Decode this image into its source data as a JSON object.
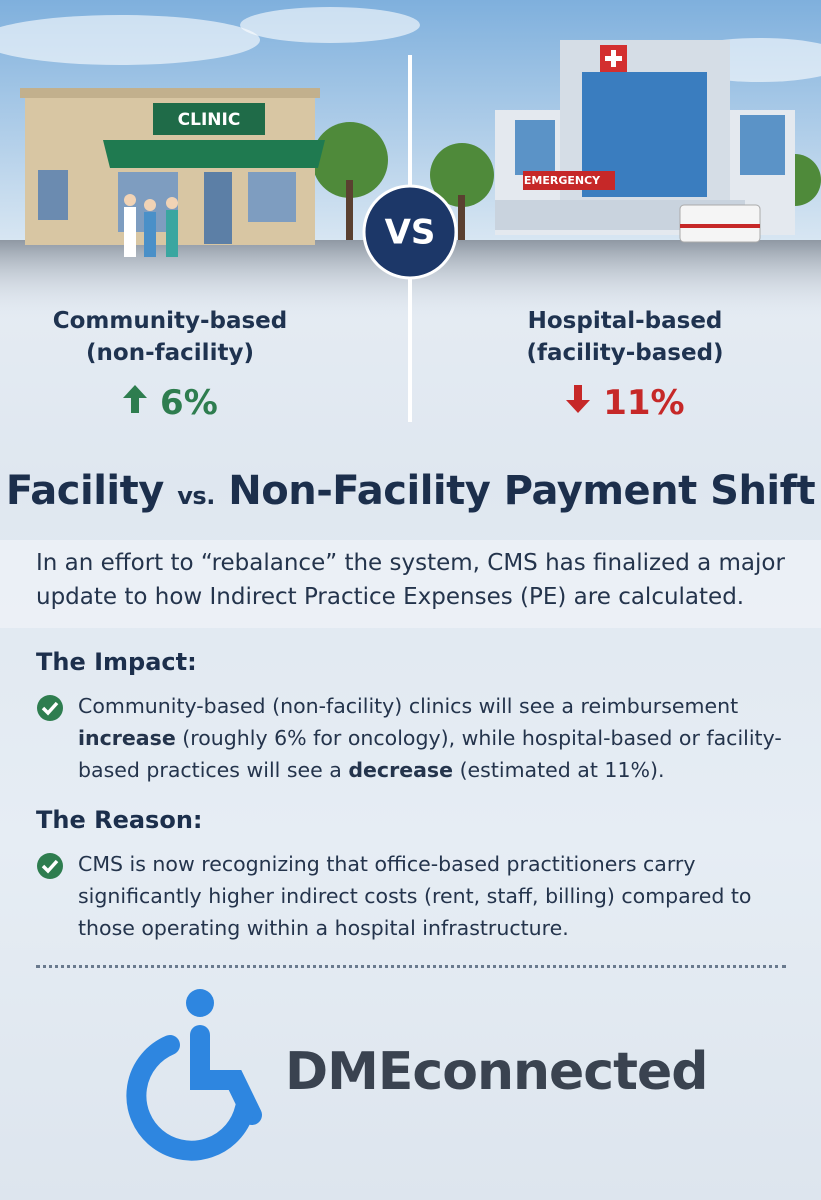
{
  "scene": {
    "clinic_sign": "CLINIC",
    "hospital_sign": "EMERGENCY",
    "vs": "VS"
  },
  "comparison": [
    {
      "title": "Community-based",
      "subtitle": "(non-facility)",
      "change": "6%",
      "direction": "up",
      "color": "#2e7d4f"
    },
    {
      "title": "Hospital-based",
      "subtitle": "(facility-based)",
      "change": "11%",
      "direction": "down",
      "color": "#c62828"
    }
  ],
  "headline": {
    "first": "Facility",
    "middle": "vs.",
    "last": "Non-Facility Payment Shift"
  },
  "intro": "In an effort to “rebalance” the system, CMS has finalized a major update to how Indirect Practice Expenses (PE) are calculated.",
  "sections": [
    {
      "heading": "The Impact:",
      "segments": [
        {
          "text": "Community-based (non-facility) clinics will see a reimbursement ",
          "bold": false
        },
        {
          "text": "increase",
          "bold": true
        },
        {
          "text": " (roughly 6% for oncology), while hospital-based or facility-based practices will see a ",
          "bold": false
        },
        {
          "text": "decrease",
          "bold": true
        },
        {
          "text": " (estimated at 11%).",
          "bold": false
        }
      ]
    },
    {
      "heading": "The Reason:",
      "segments": [
        {
          "text": "CMS is now recognizing that office-based practitioners carry significantly higher indirect costs (rent, staff, billing) compared to those operating within a hospital infrastructure.",
          "bold": false
        }
      ]
    }
  ],
  "logo": "DMEconnected"
}
